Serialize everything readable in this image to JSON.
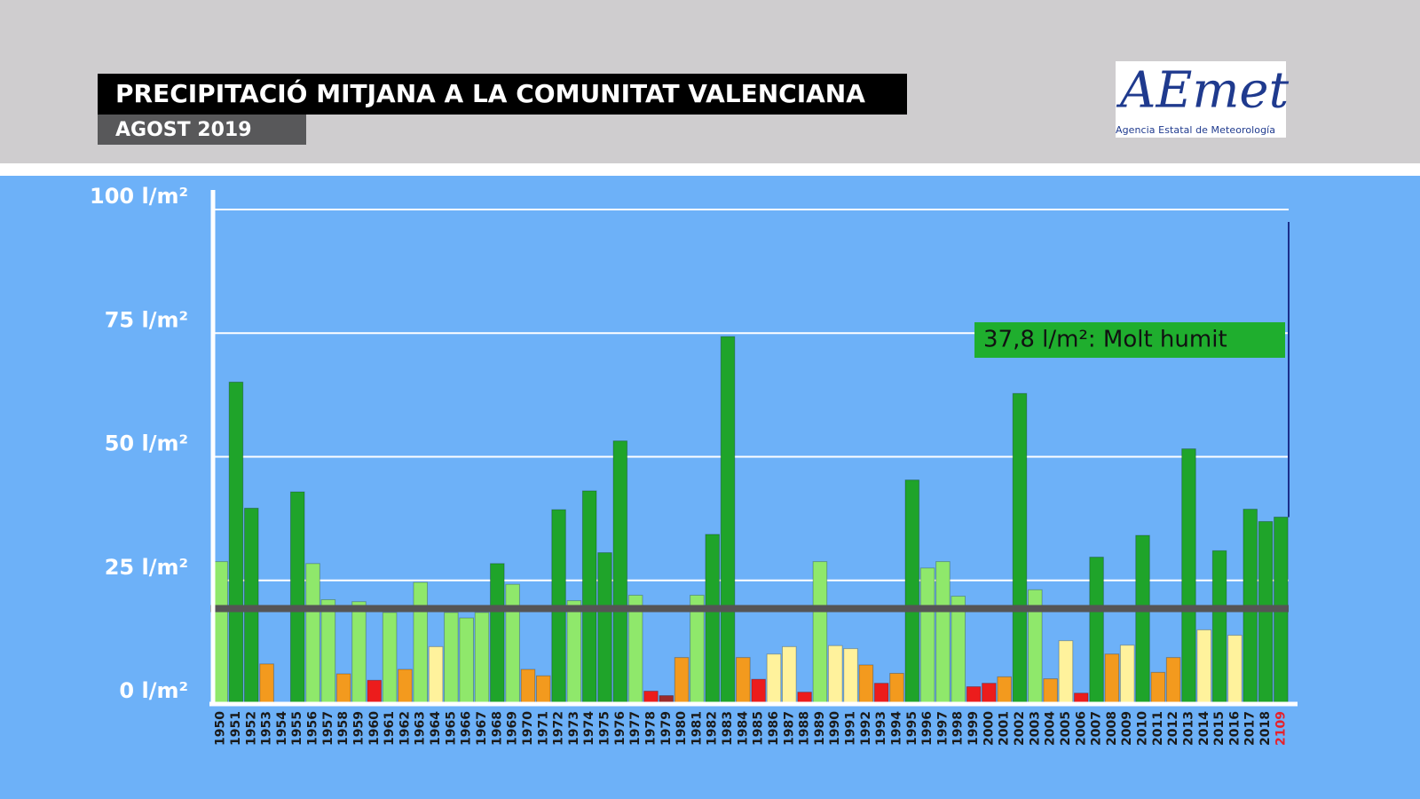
{
  "header": {
    "title": "PRECIPITACIÓ MITJANA A LA COMUNITAT VALENCIANA",
    "subtitle": "AGOST 2019",
    "logo_name": "AEmet",
    "logo_caption": "Agencia Estatal de Meteorología"
  },
  "chart_data": {
    "type": "bar",
    "categories": [
      "1950",
      "1951",
      "1952",
      "1953",
      "1954",
      "1955",
      "1956",
      "1957",
      "1958",
      "1959",
      "1960",
      "1961",
      "1962",
      "1963",
      "1964",
      "1965",
      "1966",
      "1967",
      "1968",
      "1969",
      "1970",
      "1971",
      "1972",
      "1973",
      "1974",
      "1975",
      "1976",
      "1977",
      "1978",
      "1979",
      "1980",
      "1981",
      "1982",
      "1983",
      "1984",
      "1985",
      "1986",
      "1987",
      "1988",
      "1989",
      "1990",
      "1991",
      "1992",
      "1993",
      "1994",
      "1995",
      "1996",
      "1997",
      "1998",
      "1999",
      "2000",
      "2001",
      "2002",
      "2003",
      "2004",
      "2005",
      "2006",
      "2007",
      "2008",
      "2009",
      "2010",
      "2011",
      "2012",
      "2013",
      "2014",
      "2015",
      "2016",
      "2017",
      "2018",
      "2109"
    ],
    "values": [
      28.8,
      65.1,
      39.6,
      8.1,
      0,
      42.9,
      28.4,
      21.1,
      6.1,
      20.7,
      4.8,
      18.5,
      7.0,
      24.6,
      11.6,
      18.5,
      17.4,
      18.5,
      28.4,
      24.2,
      7.0,
      5.7,
      39.3,
      20.9,
      43.1,
      30.6,
      53.2,
      22.0,
      2.6,
      1.7,
      9.4,
      22.0,
      34.3,
      74.3,
      9.4,
      5.0,
      10.1,
      11.6,
      2.4,
      28.8,
      11.8,
      11.2,
      7.9,
      4.2,
      6.2,
      45.3,
      27.5,
      28.8,
      21.8,
      3.5,
      4.2,
      5.5,
      62.8,
      23.1,
      5.1,
      12.8,
      2.2,
      29.7,
      10.1,
      11.9,
      34.1,
      6.4,
      9.4,
      51.6,
      15.0,
      31.0,
      13.9,
      39.4,
      36.9,
      37.8
    ],
    "colors": [
      "#8fe86b",
      "#1fa42a",
      "#1fa42a",
      "#f39a1e",
      "#f39a1e",
      "#1fa42a",
      "#8fe86b",
      "#8fe86b",
      "#f39a1e",
      "#8fe86b",
      "#ec1c1c",
      "#8fe86b",
      "#f39a1e",
      "#8fe86b",
      "#fff29c",
      "#8fe86b",
      "#8fe86b",
      "#8fe86b",
      "#1fa42a",
      "#8fe86b",
      "#f39a1e",
      "#f39a1e",
      "#1fa42a",
      "#8fe86b",
      "#1fa42a",
      "#1fa42a",
      "#1fa42a",
      "#8fe86b",
      "#ec1c1c",
      "#9c2b2b",
      "#f39a1e",
      "#8fe86b",
      "#1fa42a",
      "#1fa42a",
      "#f39a1e",
      "#ec1c1c",
      "#fff29c",
      "#fff29c",
      "#ec1c1c",
      "#8fe86b",
      "#fff29c",
      "#fff29c",
      "#f39a1e",
      "#ec1c1c",
      "#f39a1e",
      "#1fa42a",
      "#8fe86b",
      "#8fe86b",
      "#8fe86b",
      "#ec1c1c",
      "#ec1c1c",
      "#f39a1e",
      "#1fa42a",
      "#8fe86b",
      "#f39a1e",
      "#fff29c",
      "#ec1c1c",
      "#1fa42a",
      "#f39a1e",
      "#fff29c",
      "#1fa42a",
      "#f39a1e",
      "#f39a1e",
      "#1fa42a",
      "#fff29c",
      "#1fa42a",
      "#fff29c",
      "#1fa42a",
      "#1fa42a",
      "#1fa42a"
    ],
    "ylim": [
      0,
      100
    ],
    "yticks": [
      {
        "value": 0,
        "label": "0 l/m²"
      },
      {
        "value": 25,
        "label": "25 l/m²"
      },
      {
        "value": 50,
        "label": "50 l/m²"
      },
      {
        "value": 75,
        "label": "75 l/m²"
      },
      {
        "value": 100,
        "label": "100 l/m²"
      }
    ],
    "grid": true,
    "reference_line": 19.3,
    "annotation": "37,8 l/m²: Molt humit",
    "highlight_label": "2109",
    "highlight_color": "#e8202a"
  }
}
